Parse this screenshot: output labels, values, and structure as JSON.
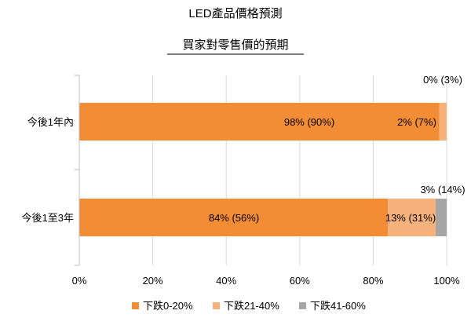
{
  "chart_data": {
    "type": "bar",
    "orientation": "horizontal",
    "stacked": true,
    "title": "LED產品價格預測",
    "subtitle": "買家對零售價的預期",
    "categories": [
      "今後1年內",
      "今後1至3年"
    ],
    "series": [
      {
        "name": "下跌0-20%",
        "color": "#f28c35",
        "values": [
          98,
          84
        ],
        "labels": [
          "98% (90%)",
          "84% (56%)"
        ]
      },
      {
        "name": "下跌21-40%",
        "color": "#f7b27c",
        "values": [
          2,
          13
        ],
        "labels": [
          "2% (7%)",
          "13% (31%)"
        ]
      },
      {
        "name": "下跌41-60%",
        "color": "#a6a6a6",
        "values": [
          0,
          3
        ],
        "labels": [
          "0% (3%)",
          "3% (14%)"
        ]
      }
    ],
    "xlim": [
      0,
      100
    ],
    "xticks": [
      "0%",
      "20%",
      "40%",
      "60%",
      "80%",
      "100%"
    ],
    "grid": true,
    "legend_position": "bottom"
  }
}
